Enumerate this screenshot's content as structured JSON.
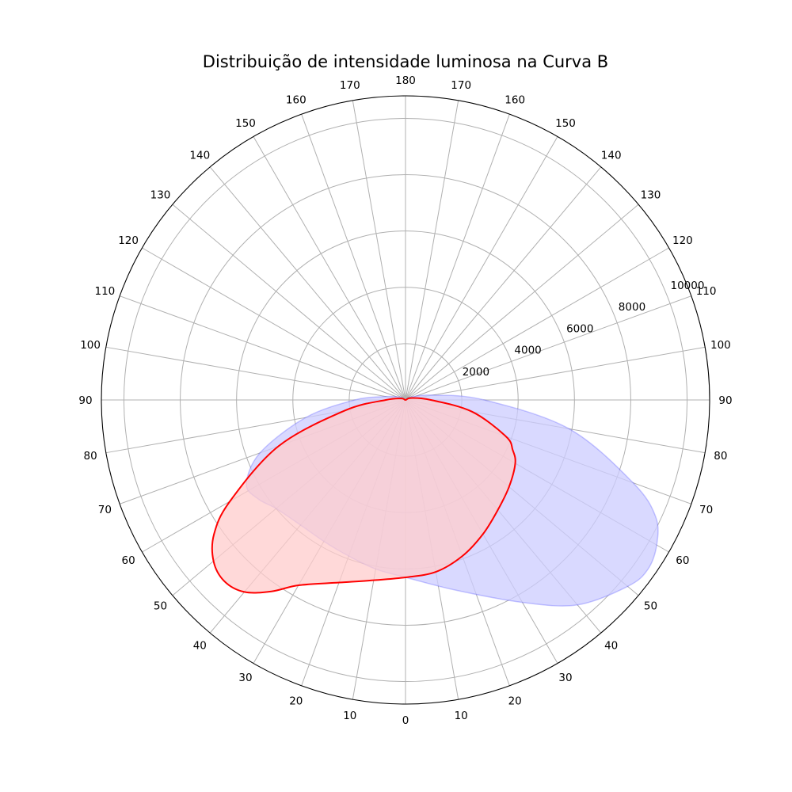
{
  "chart_data": {
    "type": "polar-area",
    "title": "Distribuição de intensidade luminosa na Curva B",
    "angle_unit": "degrees",
    "angle_zero": "bottom",
    "angle_ticks_right": [
      0,
      10,
      20,
      30,
      40,
      50,
      60,
      70,
      80,
      90,
      100,
      110,
      120,
      130,
      140,
      150,
      160,
      170,
      180
    ],
    "angle_ticks_left": [
      10,
      20,
      30,
      40,
      50,
      60,
      70,
      80,
      90,
      100,
      110,
      120,
      130,
      140,
      150,
      160,
      170
    ],
    "radial_ticks": [
      2000,
      4000,
      6000,
      8000,
      10000
    ],
    "radial_range": [
      0,
      10800
    ],
    "grid": true,
    "series": [
      {
        "color": "#0000ff",
        "fill": "#ccccff",
        "fill_opacity": 0.75,
        "outline": false,
        "points": [
          {
            "angle": 0,
            "r": 6300
          },
          {
            "angle": 15,
            "r": 7000
          },
          {
            "angle": 30,
            "r": 8300
          },
          {
            "angle": 40,
            "r": 9500
          },
          {
            "angle": 50,
            "r": 10300
          },
          {
            "angle": 55,
            "r": 10500
          },
          {
            "angle": 60,
            "r": 10300
          },
          {
            "angle": 65,
            "r": 9800
          },
          {
            "angle": 70,
            "r": 8600
          },
          {
            "angle": 80,
            "r": 5900
          },
          {
            "angle": 90,
            "r": 2800
          },
          {
            "angle": 100,
            "r": 1000
          },
          {
            "angle": 120,
            "r": 200
          },
          {
            "angle": 180,
            "r": 0
          },
          {
            "angle": -120,
            "r": 200
          },
          {
            "angle": -100,
            "r": 700
          },
          {
            "angle": -90,
            "r": 1800
          },
          {
            "angle": -80,
            "r": 3600
          },
          {
            "angle": -70,
            "r": 5500
          },
          {
            "angle": -62,
            "r": 6400
          },
          {
            "angle": -56,
            "r": 6300
          },
          {
            "angle": -50,
            "r": 6000
          },
          {
            "angle": -40,
            "r": 5800
          },
          {
            "angle": -30,
            "r": 5800
          },
          {
            "angle": -20,
            "r": 5900
          },
          {
            "angle": -10,
            "r": 6100
          }
        ]
      },
      {
        "color": "#ff0000",
        "fill": "#ffcccc",
        "fill_opacity": 0.75,
        "outline": true,
        "points": [
          {
            "angle": 0,
            "r": 6300
          },
          {
            "angle": 10,
            "r": 6200
          },
          {
            "angle": 20,
            "r": 5900
          },
          {
            "angle": 30,
            "r": 5500
          },
          {
            "angle": 40,
            "r": 5100
          },
          {
            "angle": 50,
            "r": 4800
          },
          {
            "angle": 60,
            "r": 4500
          },
          {
            "angle": 65,
            "r": 4200
          },
          {
            "angle": 70,
            "r": 3800
          },
          {
            "angle": 80,
            "r": 2400
          },
          {
            "angle": 90,
            "r": 900
          },
          {
            "angle": 110,
            "r": 200
          },
          {
            "angle": 180,
            "r": 0
          },
          {
            "angle": -110,
            "r": 150
          },
          {
            "angle": -90,
            "r": 700
          },
          {
            "angle": -80,
            "r": 2200
          },
          {
            "angle": -70,
            "r": 4800
          },
          {
            "angle": -60,
            "r": 7200
          },
          {
            "angle": -55,
            "r": 8300
          },
          {
            "angle": -50,
            "r": 8900
          },
          {
            "angle": -45,
            "r": 9100
          },
          {
            "angle": -40,
            "r": 8900
          },
          {
            "angle": -35,
            "r": 8300
          },
          {
            "angle": -30,
            "r": 7600
          },
          {
            "angle": -20,
            "r": 6900
          },
          {
            "angle": -10,
            "r": 6500
          }
        ]
      }
    ]
  }
}
